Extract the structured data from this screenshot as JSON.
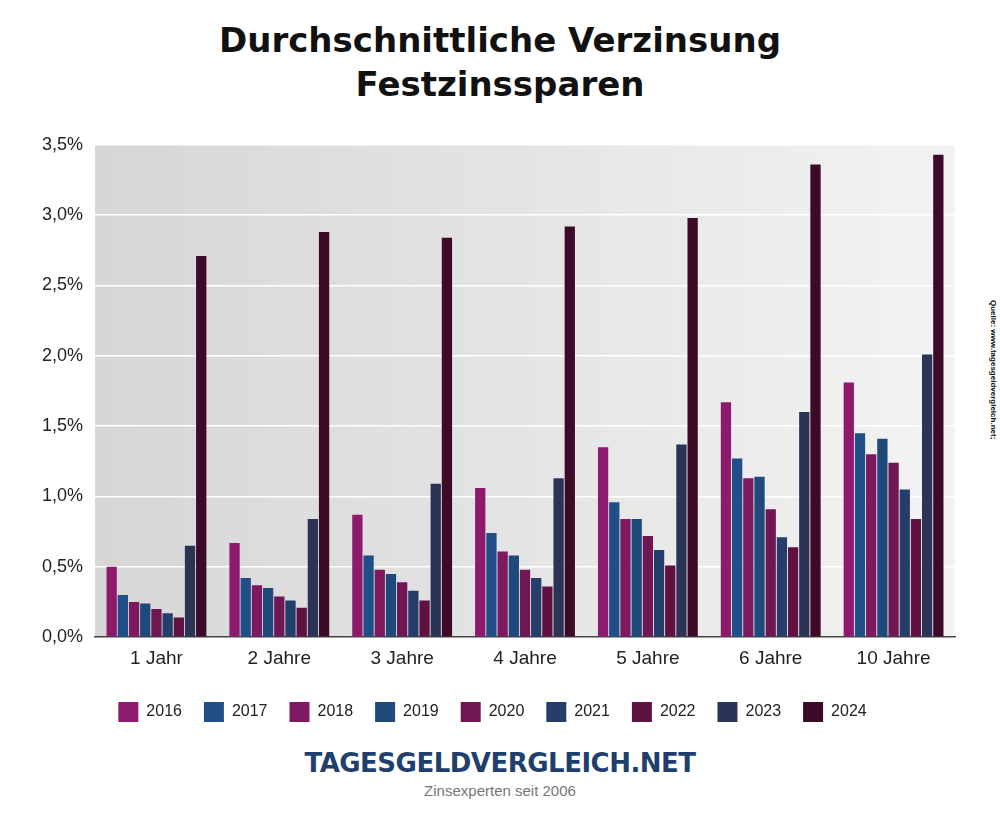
{
  "chart_data": {
    "type": "bar",
    "title": "Durchschnittliche Verzinsung Festzinssparen",
    "annotations": [
      "Quelle: www.tagesgeldvergleich.net;",
      "TAGESGELDVERGLEICH.NET",
      "Zinsexperten seit 2006"
    ],
    "categories": [
      "1 Jahr",
      "2 Jahre",
      "3 Jahre",
      "4 Jahre",
      "5 Jahre",
      "6 Jahre",
      "10 Jahre"
    ],
    "series": [
      {
        "name": "2016",
        "color": "#8e1a6d",
        "values": [
          0.5,
          0.67,
          0.87,
          1.06,
          1.35,
          1.67,
          1.81
        ]
      },
      {
        "name": "2017",
        "color": "#1f4f86",
        "values": [
          0.3,
          0.42,
          0.58,
          0.74,
          0.96,
          1.27,
          1.45
        ]
      },
      {
        "name": "2018",
        "color": "#7c195f",
        "values": [
          0.25,
          0.37,
          0.48,
          0.61,
          0.84,
          1.13,
          1.3
        ]
      },
      {
        "name": "2019",
        "color": "#1e4a7b",
        "values": [
          0.24,
          0.35,
          0.45,
          0.58,
          0.84,
          1.14,
          1.41
        ]
      },
      {
        "name": "2020",
        "color": "#6f1752",
        "values": [
          0.2,
          0.29,
          0.39,
          0.48,
          0.72,
          0.91,
          1.24
        ]
      },
      {
        "name": "2021",
        "color": "#253d6b",
        "values": [
          0.17,
          0.26,
          0.33,
          0.42,
          0.62,
          0.71,
          1.05
        ]
      },
      {
        "name": "2022",
        "color": "#5f1242",
        "values": [
          0.14,
          0.21,
          0.26,
          0.36,
          0.51,
          0.64,
          0.84
        ]
      },
      {
        "name": "2023",
        "color": "#2b3456",
        "values": [
          0.65,
          0.84,
          1.09,
          1.13,
          1.37,
          1.6,
          2.01
        ]
      },
      {
        "name": "2024",
        "color": "#3d0a27",
        "values": [
          2.71,
          2.88,
          2.84,
          2.92,
          2.98,
          3.36,
          3.43
        ]
      }
    ],
    "ylim": [
      0,
      3.5
    ],
    "yticks": [
      {
        "value": 0,
        "label": "0,0%"
      },
      {
        "value": 0.5,
        "label": "0,5%"
      },
      {
        "value": 1,
        "label": "1,0%"
      },
      {
        "value": 1.5,
        "label": "1,5%"
      },
      {
        "value": 2,
        "label": "2,0%"
      },
      {
        "value": 2.5,
        "label": "2,5%"
      },
      {
        "value": 3,
        "label": "3,0%"
      },
      {
        "value": 3.5,
        "label": "3,5%"
      }
    ],
    "grid": true,
    "legend": "bottom"
  }
}
